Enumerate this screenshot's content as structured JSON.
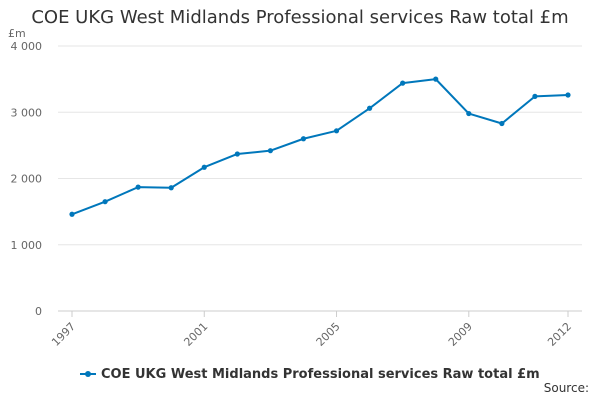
{
  "chart_data": {
    "type": "line",
    "title": "COE UKG West Midlands Professional services Raw total £m",
    "ylabel": "£m",
    "xlabel": "",
    "x": [
      1997,
      1998,
      1999,
      2000,
      2001,
      2002,
      2003,
      2004,
      2005,
      2006,
      2007,
      2008,
      2009,
      2010,
      2011,
      2012
    ],
    "xtick_labels": [
      "1997",
      "2001",
      "2005",
      "2009",
      "2012"
    ],
    "xtick_values": [
      1997,
      2001,
      2005,
      2009,
      2012
    ],
    "ytick_labels": [
      "0",
      "1 000",
      "2 000",
      "3 000",
      "4 000"
    ],
    "ytick_values": [
      0,
      1000,
      2000,
      3000,
      4000
    ],
    "ylim": [
      0,
      4000
    ],
    "series": [
      {
        "name": "COE UKG West Midlands Professional services Raw total £m",
        "color": "#0077bb",
        "values": [
          1460,
          1650,
          1870,
          1860,
          2170,
          2370,
          2420,
          2600,
          2720,
          3060,
          3440,
          3500,
          2980,
          2830,
          3240,
          3260
        ]
      }
    ],
    "grid": true,
    "legend": "bottom-left"
  },
  "source_label": "Source:"
}
